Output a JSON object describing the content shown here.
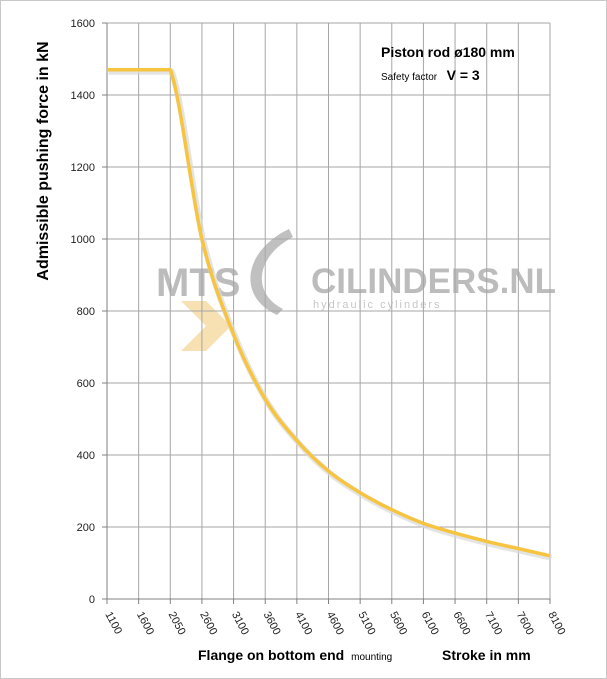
{
  "chart_data": {
    "type": "line",
    "ylabel": "Admissible pushing force in kN",
    "xlabel_main": "Flange on bottom end",
    "xlabel_small": "mounting",
    "xlabel_right": "Stroke in mm",
    "annotation_title": "Piston rod ø180 mm",
    "annotation_safety_label": "Safety factor",
    "annotation_safety_value": "V = 3",
    "x_tick_labels": [
      "1100",
      "1600",
      "2050",
      "2600",
      "3100",
      "3600",
      "4100",
      "4600",
      "5100",
      "5600",
      "6100",
      "6600",
      "7100",
      "7600",
      "8100"
    ],
    "ylim": [
      0,
      1600
    ],
    "y_ticks": [
      0,
      200,
      400,
      600,
      800,
      1000,
      1200,
      1400,
      1600
    ],
    "grid": true,
    "series": [
      {
        "x_index": [
          0,
          1,
          2,
          3,
          4,
          5,
          6,
          7,
          8,
          9,
          10,
          11,
          12,
          13,
          14
        ],
        "values": [
          1470,
          1470,
          1470,
          1000,
          735,
          555,
          440,
          355,
          295,
          248,
          210,
          183,
          160,
          140,
          120
        ]
      }
    ],
    "series_color": "#f7c440"
  },
  "watermark": {
    "brand_left": "MTS",
    "brand_right": "CILINDERS.NL",
    "tagline": "hydraulic cylinders"
  }
}
